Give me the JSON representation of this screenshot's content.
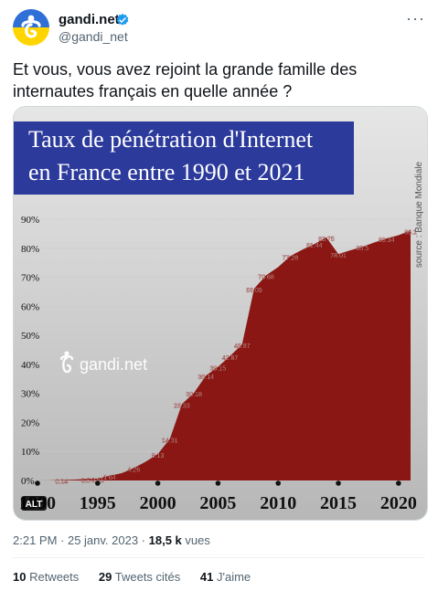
{
  "author": {
    "name": "gandi.net",
    "handle": "@gandi_net"
  },
  "tweet": {
    "text": "Et vous, vous avez rejoint la grande famille des internautes français en quelle année ?"
  },
  "media": {
    "alt_badge": "ALT",
    "watermark": "gandi.net",
    "source": "source : Banque Mondiale",
    "title_line1": "Taux de pénétration d'Internet",
    "title_line2": "en France entre 1990 et 2021"
  },
  "chart_data": {
    "type": "area",
    "title": "Taux de pénétration d'Internet en France entre 1990 et 2021",
    "x": [
      1990,
      1991,
      1992,
      1993,
      1994,
      1995,
      1996,
      1997,
      1998,
      1999,
      2000,
      2001,
      2002,
      2003,
      2004,
      2005,
      2006,
      2007,
      2008,
      2009,
      2010,
      2011,
      2012,
      2013,
      2014,
      2015,
      2016,
      2017,
      2018,
      2019,
      2020,
      2021
    ],
    "values": [
      0,
      0.05,
      0.14,
      0.28,
      0.5,
      0.61,
      1.64,
      2.5,
      4.26,
      6.5,
      9.13,
      14.31,
      26.33,
      30.18,
      36.14,
      39.15,
      42.87,
      46.87,
      66.09,
      70.68,
      73.5,
      77.28,
      79.5,
      81.44,
      83.75,
      78.01,
      79.3,
      80.5,
      82.0,
      83.34,
      84.5,
      86.1
    ],
    "data_labels": [
      {
        "x": 1992,
        "label": "0.14"
      },
      {
        "x": 1994,
        "label": "0.5"
      },
      {
        "x": 1995,
        "label": "0.61"
      },
      {
        "x": 1996,
        "label": "1.64"
      },
      {
        "x": 1998,
        "label": "4.26"
      },
      {
        "x": 2000,
        "label": "9.13"
      },
      {
        "x": 2001,
        "label": "14.31"
      },
      {
        "x": 2002,
        "label": "26.33"
      },
      {
        "x": 2003,
        "label": "30.18"
      },
      {
        "x": 2004,
        "label": "36.14"
      },
      {
        "x": 2005,
        "label": "39.15"
      },
      {
        "x": 2006,
        "label": "42.87"
      },
      {
        "x": 2007,
        "label": "46.87"
      },
      {
        "x": 2008,
        "label": "66.09"
      },
      {
        "x": 2009,
        "label": "70.68"
      },
      {
        "x": 2011,
        "label": "77.28"
      },
      {
        "x": 2013,
        "label": "81.44"
      },
      {
        "x": 2014,
        "label": "83.75"
      },
      {
        "x": 2015,
        "label": "78.01"
      },
      {
        "x": 2017,
        "label": "80.5"
      },
      {
        "x": 2019,
        "label": "83.34"
      },
      {
        "x": 2021,
        "label": "86.1"
      }
    ],
    "y_ticks": [
      "0%",
      "10%",
      "20%",
      "30%",
      "40%",
      "50%",
      "60%",
      "70%",
      "80%",
      "90%"
    ],
    "x_ticks": [
      "1990",
      "1995",
      "2000",
      "2005",
      "2010",
      "2015",
      "2020"
    ],
    "ylim": [
      0,
      90
    ],
    "xlim": [
      1990,
      2021
    ],
    "fill_color": "#8a1713"
  },
  "meta": {
    "time": "2:21 PM · 25 janv. 2023 · ",
    "views_count": "18,5 k",
    "views_label": " vues"
  },
  "stats": {
    "retweets_count": "10",
    "retweets_label": " Retweets",
    "quotes_count": "29",
    "quotes_label": " Tweets cités",
    "likes_count": "41",
    "likes_label": " J'aime"
  },
  "colors": {
    "accent": "#1d9bf0",
    "title_bg": "#2c3a9c",
    "chart_fill": "#8a1713"
  }
}
